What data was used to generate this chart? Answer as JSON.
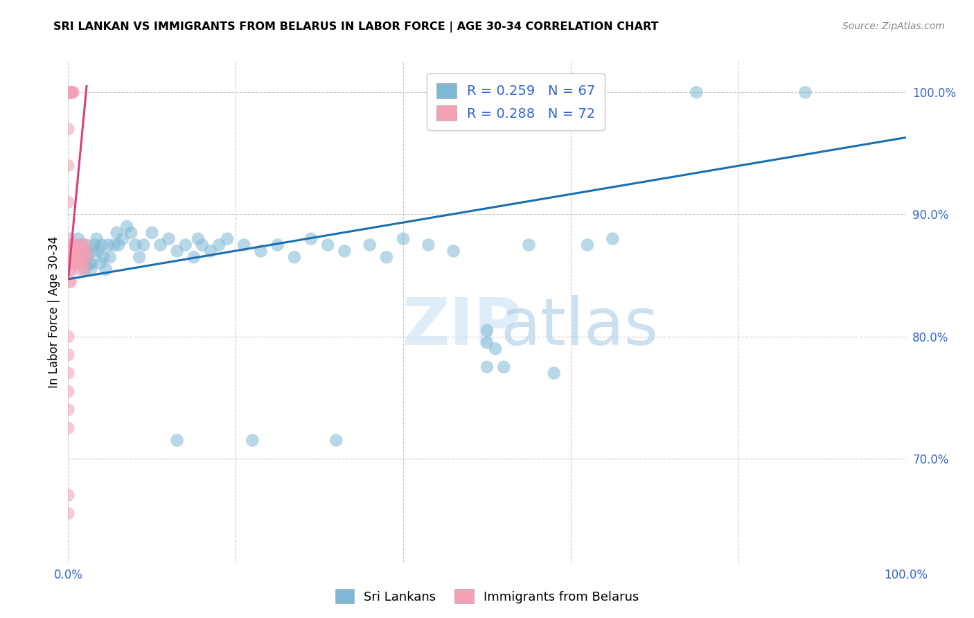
{
  "title": "SRI LANKAN VS IMMIGRANTS FROM BELARUS IN LABOR FORCE | AGE 30-34 CORRELATION CHART",
  "source": "Source: ZipAtlas.com",
  "ylabel": "In Labor Force | Age 30-34",
  "xlim": [
    0.0,
    1.0
  ],
  "ylim": [
    0.615,
    1.025
  ],
  "y_ticks_right": [
    0.7,
    0.8,
    0.9,
    1.0
  ],
  "y_tick_labels_right": [
    "70.0%",
    "80.0%",
    "90.0%",
    "100.0%"
  ],
  "x_ticks": [
    0.0,
    0.2,
    0.4,
    0.6,
    0.8,
    1.0
  ],
  "x_tick_labels": [
    "0.0%",
    "",
    "",
    "",
    "",
    "100.0%"
  ],
  "blue_color": "#7eb8d4",
  "pink_color": "#f4a0b5",
  "line_blue": "#1a6faf",
  "line_pink": "#d44080",
  "legend_R_blue": "0.259",
  "legend_N_blue": "67",
  "legend_R_pink": "0.288",
  "legend_N_pink": "72",
  "blue_trend_x0": 0.0,
  "blue_trend_x1": 1.0,
  "blue_trend_y0": 0.847,
  "blue_trend_y1": 0.963,
  "pink_trend_x0": 0.0,
  "pink_trend_x1": 0.022,
  "pink_trend_y0": 0.847,
  "pink_trend_y1": 1.005,
  "blue_x": [
    0.005,
    0.008,
    0.009,
    0.01,
    0.012,
    0.014,
    0.015,
    0.016,
    0.018,
    0.019,
    0.02,
    0.021,
    0.022,
    0.023,
    0.025,
    0.027,
    0.028,
    0.03,
    0.032,
    0.034,
    0.036,
    0.038,
    0.04,
    0.042,
    0.045,
    0.048,
    0.05,
    0.055,
    0.058,
    0.06,
    0.065,
    0.07,
    0.075,
    0.08,
    0.085,
    0.09,
    0.1,
    0.11,
    0.12,
    0.13,
    0.14,
    0.15,
    0.155,
    0.16,
    0.17,
    0.18,
    0.19,
    0.21,
    0.23,
    0.25,
    0.27,
    0.29,
    0.31,
    0.33,
    0.36,
    0.38,
    0.4,
    0.43,
    0.46,
    0.5,
    0.52,
    0.55,
    0.58,
    0.62,
    0.65,
    0.75,
    0.88
  ],
  "blue_y": [
    0.86,
    0.875,
    0.87,
    0.86,
    0.88,
    0.87,
    0.865,
    0.875,
    0.87,
    0.86,
    0.855,
    0.875,
    0.87,
    0.865,
    0.86,
    0.855,
    0.86,
    0.87,
    0.875,
    0.88,
    0.87,
    0.86,
    0.875,
    0.865,
    0.855,
    0.875,
    0.865,
    0.875,
    0.885,
    0.875,
    0.88,
    0.89,
    0.885,
    0.875,
    0.865,
    0.875,
    0.885,
    0.875,
    0.88,
    0.87,
    0.875,
    0.865,
    0.88,
    0.875,
    0.87,
    0.875,
    0.88,
    0.875,
    0.87,
    0.875,
    0.865,
    0.88,
    0.875,
    0.87,
    0.875,
    0.865,
    0.88,
    0.875,
    0.87,
    0.795,
    0.775,
    0.875,
    0.77,
    0.875,
    0.88,
    1.0,
    1.0
  ],
  "blue_x2": [
    0.13,
    0.22,
    0.32,
    0.5,
    0.51,
    0.5
  ],
  "blue_y2": [
    0.715,
    0.715,
    0.715,
    0.805,
    0.79,
    0.775
  ],
  "pink_x": [
    0.0,
    0.0,
    0.0,
    0.0,
    0.0,
    0.0,
    0.0,
    0.0,
    0.0,
    0.0,
    0.001,
    0.001,
    0.001,
    0.001,
    0.001,
    0.001,
    0.002,
    0.002,
    0.002,
    0.002,
    0.003,
    0.003,
    0.003,
    0.003,
    0.003,
    0.004,
    0.004,
    0.004,
    0.005,
    0.005,
    0.005,
    0.006,
    0.006,
    0.007,
    0.008,
    0.009,
    0.01,
    0.011,
    0.012,
    0.013,
    0.014,
    0.015,
    0.016,
    0.017,
    0.018,
    0.019,
    0.02,
    0.021,
    0.022
  ],
  "pink_y": [
    1.0,
    1.0,
    1.0,
    1.0,
    1.0,
    1.0,
    1.0,
    0.97,
    0.94,
    0.91,
    1.0,
    1.0,
    1.0,
    0.88,
    0.865,
    0.845,
    1.0,
    1.0,
    0.87,
    0.855,
    1.0,
    1.0,
    0.875,
    0.86,
    0.845,
    1.0,
    0.87,
    0.855,
    1.0,
    0.875,
    0.86,
    1.0,
    0.86,
    0.87,
    0.865,
    0.86,
    0.875,
    0.87,
    0.865,
    0.86,
    0.855,
    0.875,
    0.87,
    0.865,
    0.86,
    0.855,
    0.875,
    0.87,
    0.865
  ],
  "pink_x2": [
    0.0,
    0.0,
    0.0,
    0.0,
    0.0,
    0.0,
    0.0,
    0.0
  ],
  "pink_y2": [
    0.8,
    0.785,
    0.77,
    0.755,
    0.74,
    0.725,
    0.67,
    0.655
  ]
}
